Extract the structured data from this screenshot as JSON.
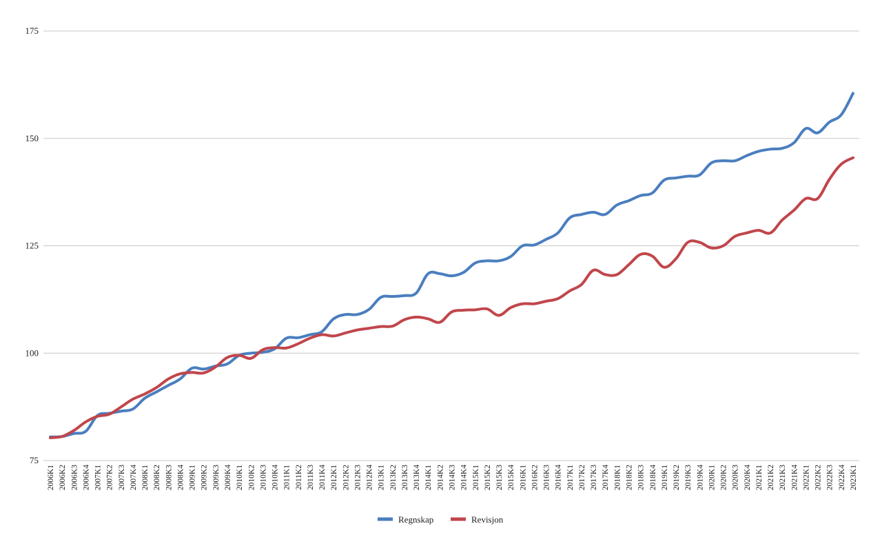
{
  "colors": {
    "regnskap": "#4a7ebf",
    "revisjon": "#c0464b",
    "grid": "#c8c8c8",
    "text": "#222222"
  },
  "chart_data": {
    "type": "line",
    "title": "",
    "xlabel": "",
    "ylabel": "",
    "ylim": [
      75,
      175
    ],
    "yticks": [
      75,
      100,
      125,
      150,
      175
    ],
    "grid": true,
    "smooth": true,
    "legend_position": "bottom-center",
    "categories": [
      "2006K1",
      "2006K2",
      "2006K3",
      "2006K4",
      "2007K1",
      "2007K2",
      "2007K3",
      "2007K4",
      "2008K1",
      "2008K2",
      "2008K3",
      "2008K4",
      "2009K1",
      "2009K2",
      "2009K3",
      "2009K4",
      "2010K1",
      "2010K2",
      "2010K3",
      "2010K4",
      "2011K1",
      "2011K2",
      "2011K3",
      "2011K4",
      "2012K1",
      "2012K2",
      "2012K3",
      "2012K4",
      "2013K1",
      "2013K2",
      "2013K3",
      "2013K4",
      "2014K1",
      "2014K2",
      "2014K3",
      "2014K4",
      "2015K1",
      "2015K2",
      "2015K3",
      "2015K4",
      "2016K1",
      "2016K2",
      "2016K3",
      "2016K4",
      "2017K1",
      "2017K2",
      "2017K3",
      "2017K4",
      "2018K1",
      "2018K2",
      "2018K3",
      "2018K4",
      "2019K1",
      "2019K2",
      "2019K3",
      "2019K4",
      "2020K1",
      "2020K2",
      "2020K3",
      "2020K4",
      "2021K1",
      "2021K2",
      "2021K3",
      "2021K4",
      "2022K1",
      "2022K2",
      "2022K3",
      "2022K4",
      "2023K1"
    ],
    "series": [
      {
        "name": "Regnskap",
        "values": [
          80.5,
          80.6,
          81.3,
          81.8,
          85.5,
          86.0,
          86.5,
          87.0,
          89.5,
          91.0,
          92.5,
          94.0,
          96.5,
          96.3,
          97.0,
          97.5,
          99.5,
          100.0,
          100.2,
          101.0,
          103.5,
          103.6,
          104.3,
          105.0,
          108.0,
          109.0,
          109.0,
          110.2,
          113.0,
          113.2,
          113.4,
          114.0,
          118.5,
          118.5,
          118.0,
          118.8,
          121.0,
          121.5,
          121.5,
          122.5,
          125.0,
          125.2,
          126.5,
          128.0,
          131.5,
          132.3,
          132.8,
          132.3,
          134.5,
          135.5,
          136.7,
          137.3,
          140.3,
          140.8,
          141.2,
          141.5,
          144.3,
          144.8,
          144.8,
          146.0,
          147.0,
          147.5,
          147.7,
          149.0,
          152.3,
          151.3,
          153.8,
          155.5,
          160.5
        ]
      },
      {
        "name": "Revisjon",
        "values": [
          80.3,
          80.6,
          82.0,
          84.0,
          85.3,
          85.8,
          87.5,
          89.3,
          90.5,
          92.0,
          94.0,
          95.2,
          95.5,
          95.4,
          96.8,
          99.0,
          99.5,
          98.8,
          100.8,
          101.3,
          101.2,
          102.2,
          103.5,
          104.3,
          104.0,
          104.7,
          105.4,
          105.8,
          106.2,
          106.3,
          107.8,
          108.4,
          108.0,
          107.2,
          109.6,
          110.0,
          110.1,
          110.3,
          108.8,
          110.6,
          111.5,
          111.5,
          112.1,
          112.7,
          114.5,
          116.0,
          119.3,
          118.3,
          118.3,
          120.6,
          123.0,
          122.6,
          120.0,
          122.0,
          125.8,
          125.8,
          124.5,
          125.0,
          127.2,
          128.0,
          128.6,
          128.0,
          131.0,
          133.3,
          136.0,
          136.0,
          140.5,
          144.0,
          145.5
        ]
      }
    ]
  }
}
